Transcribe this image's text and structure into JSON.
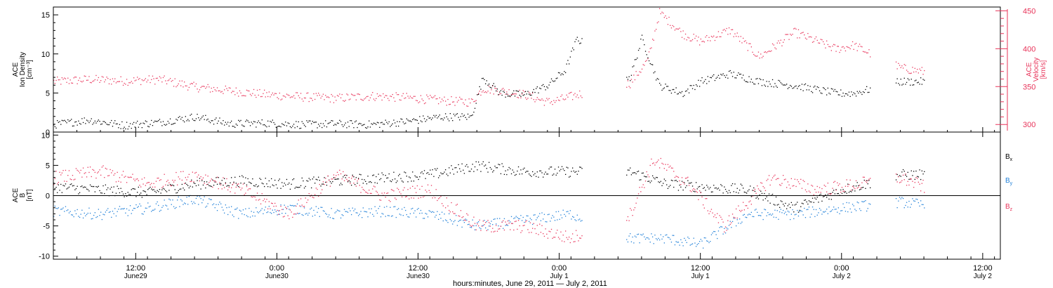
{
  "colors": {
    "black": "#000000",
    "red": "#e8345a",
    "blue": "#1e7fd8"
  },
  "time_axis": {
    "label": "hours:minutes, June 29, 2011 — July  2, 2011",
    "ticks": [
      {
        "time": "2011-06-29T12:00",
        "line1": "12:00",
        "line2": "June29"
      },
      {
        "time": "2011-06-30T00:00",
        "line1": "0:00",
        "line2": "June30"
      },
      {
        "time": "2011-06-30T12:00",
        "line1": "12:00",
        "line2": "June30"
      },
      {
        "time": "2011-07-01T00:00",
        "line1": "0:00",
        "line2": "July  1"
      },
      {
        "time": "2011-07-01T12:00",
        "line1": "12:00",
        "line2": "July  1"
      },
      {
        "time": "2011-07-02T00:00",
        "line1": "0:00",
        "line2": "July  2"
      },
      {
        "time": "2011-07-02T12:00",
        "line1": "12:00",
        "line2": "July  2"
      }
    ]
  },
  "chart_data": [
    {
      "type": "scatter",
      "panel": "top",
      "xlim": [
        "2011-06-29T05:00",
        "2011-07-02T13:30"
      ],
      "left_axis": {
        "label_lines": [
          "ACE",
          "Ion Density",
          "[cm⁻³]"
        ],
        "ylim": [
          0,
          16
        ],
        "tick_labels": [
          "0",
          "5",
          "10",
          "15"
        ]
      },
      "right_axis": {
        "label_lines": [
          "ACE",
          "Velocity",
          "[km/s]"
        ],
        "ylim": [
          290,
          455
        ],
        "tick_labels": [
          "300",
          "350",
          "400",
          "450"
        ]
      },
      "series": [
        {
          "axis": "left",
          "color": "#000000",
          "points": [
            [
              "2011-06-29T05:00",
              1.0
            ],
            [
              "2011-06-29T08:00",
              1.6
            ],
            [
              "2011-06-29T11:00",
              0.9
            ],
            [
              "2011-06-29T14:00",
              1.3
            ],
            [
              "2011-06-29T17:00",
              2.0
            ],
            [
              "2011-06-29T20:00",
              1.1
            ],
            [
              "2011-06-29T23:00",
              1.2
            ],
            [
              "2011-06-30T02:00",
              1.0
            ],
            [
              "2011-06-30T05:00",
              1.1
            ],
            [
              "2011-06-30T08:00",
              1.0
            ],
            [
              "2011-06-30T11:00",
              1.4
            ],
            [
              "2011-06-30T14:00",
              2.0
            ],
            [
              "2011-06-30T16:30",
              2.0
            ],
            [
              "2011-06-30T17:30",
              7.0
            ],
            [
              "2011-06-30T19:00",
              5.0
            ],
            [
              "2011-06-30T21:00",
              4.8
            ],
            [
              "2011-06-30T23:00",
              6.0
            ],
            [
              "2011-07-01T00:30",
              8.0
            ],
            [
              "2011-07-01T01:30",
              12.0
            ],
            [
              "2011-07-01T06:00",
              7.0
            ],
            [
              "2011-07-01T07:00",
              12.0
            ],
            [
              "2011-07-01T08:30",
              6.0
            ],
            [
              "2011-07-01T10:30",
              5.0
            ],
            [
              "2011-07-01T12:00",
              6.5
            ],
            [
              "2011-07-01T14:30",
              7.5
            ],
            [
              "2011-07-01T17:00",
              6.5
            ],
            [
              "2011-07-01T20:00",
              6.0
            ],
            [
              "2011-07-01T23:30",
              5.0
            ],
            [
              "2011-07-02T01:00",
              5.0
            ],
            [
              "2011-07-02T05:00",
              6.5
            ],
            [
              "2011-07-02T07:00",
              6.5
            ]
          ]
        },
        {
          "axis": "right",
          "color": "#e8345a",
          "points": [
            [
              "2011-06-29T05:00",
              357
            ],
            [
              "2011-06-29T08:00",
              360
            ],
            [
              "2011-06-29T11:00",
              358
            ],
            [
              "2011-06-29T14:00",
              360
            ],
            [
              "2011-06-29T17:00",
              350
            ],
            [
              "2011-06-29T20:00",
              345
            ],
            [
              "2011-06-29T23:00",
              340
            ],
            [
              "2011-06-30T02:00",
              337
            ],
            [
              "2011-06-30T05:00",
              335
            ],
            [
              "2011-06-30T08:00",
              338
            ],
            [
              "2011-06-30T11:00",
              336
            ],
            [
              "2011-06-30T14:00",
              332
            ],
            [
              "2011-06-30T16:30",
              330
            ],
            [
              "2011-06-30T17:30",
              348
            ],
            [
              "2011-06-30T19:00",
              345
            ],
            [
              "2011-06-30T21:00",
              340
            ],
            [
              "2011-06-30T23:00",
              330
            ],
            [
              "2011-07-01T00:30",
              335
            ],
            [
              "2011-07-01T01:30",
              340
            ],
            [
              "2011-07-01T06:00",
              355
            ],
            [
              "2011-07-01T07:30",
              385
            ],
            [
              "2011-07-01T08:30",
              448
            ],
            [
              "2011-07-01T10:30",
              420
            ],
            [
              "2011-07-01T12:00",
              410
            ],
            [
              "2011-07-01T14:30",
              425
            ],
            [
              "2011-07-01T17:00",
              390
            ],
            [
              "2011-07-01T20:00",
              422
            ],
            [
              "2011-07-01T23:30",
              400
            ],
            [
              "2011-07-02T01:00",
              405
            ],
            [
              "2011-07-02T05:00",
              375
            ],
            [
              "2011-07-02T07:00",
              370
            ]
          ]
        }
      ]
    },
    {
      "type": "scatter",
      "panel": "bottom",
      "xlim": [
        "2011-06-29T05:00",
        "2011-07-02T13:30"
      ],
      "axis": {
        "label_lines": [
          "ACE",
          "B",
          "[nT]"
        ],
        "ylim": [
          -10.5,
          10.5
        ],
        "tick_labels": [
          "-10",
          "-5",
          "0",
          "5",
          "10"
        ]
      },
      "legend_position": "right",
      "series": [
        {
          "name": "Bx",
          "color": "#000000",
          "points": [
            [
              "2011-06-29T05:00",
              1.5
            ],
            [
              "2011-06-29T09:00",
              1.0
            ],
            [
              "2011-06-29T13:00",
              0.5
            ],
            [
              "2011-06-29T17:00",
              2.0
            ],
            [
              "2011-06-29T21:00",
              2.5
            ],
            [
              "2011-06-30T01:00",
              2.0
            ],
            [
              "2011-06-30T05:00",
              2.5
            ],
            [
              "2011-06-30T09:00",
              3.0
            ],
            [
              "2011-06-30T13:00",
              3.5
            ],
            [
              "2011-06-30T17:00",
              5.0
            ],
            [
              "2011-06-30T21:00",
              4.0
            ],
            [
              "2011-07-01T01:00",
              4.0
            ],
            [
              "2011-07-01T06:00",
              4.0
            ],
            [
              "2011-07-01T09:00",
              2.0
            ],
            [
              "2011-07-01T12:00",
              1.5
            ],
            [
              "2011-07-01T16:00",
              1.0
            ],
            [
              "2011-07-01T20:00",
              -2.0
            ],
            [
              "2011-07-02T00:00",
              1.0
            ],
            [
              "2011-07-02T05:00",
              3.5
            ],
            [
              "2011-07-02T07:00",
              3.5
            ]
          ]
        },
        {
          "name": "By",
          "color": "#1e7fd8",
          "points": [
            [
              "2011-06-29T05:00",
              -2.5
            ],
            [
              "2011-06-29T09:00",
              -3.0
            ],
            [
              "2011-06-29T13:00",
              -2.0
            ],
            [
              "2011-06-29T17:00",
              -0.5
            ],
            [
              "2011-06-29T21:00",
              -3.0
            ],
            [
              "2011-06-30T01:00",
              -2.0
            ],
            [
              "2011-06-30T05:00",
              -3.0
            ],
            [
              "2011-06-30T09:00",
              -2.5
            ],
            [
              "2011-06-30T13:00",
              -3.0
            ],
            [
              "2011-06-30T17:00",
              -5.0
            ],
            [
              "2011-06-30T21:00",
              -4.0
            ],
            [
              "2011-07-01T01:00",
              -3.0
            ],
            [
              "2011-07-01T06:00",
              -7.0
            ],
            [
              "2011-07-01T09:00",
              -7.0
            ],
            [
              "2011-07-01T12:00",
              -8.0
            ],
            [
              "2011-07-01T16:00",
              -3.0
            ],
            [
              "2011-07-01T20:00",
              -3.0
            ],
            [
              "2011-07-02T00:00",
              -2.0
            ],
            [
              "2011-07-02T05:00",
              -1.0
            ],
            [
              "2011-07-02T07:00",
              -1.5
            ]
          ]
        },
        {
          "name": "Bz",
          "color": "#e8345a",
          "points": [
            [
              "2011-06-29T05:00",
              3.0
            ],
            [
              "2011-06-29T09:00",
              4.0
            ],
            [
              "2011-06-29T13:00",
              2.0
            ],
            [
              "2011-06-29T17:00",
              3.5
            ],
            [
              "2011-06-29T21:00",
              1.0
            ],
            [
              "2011-06-30T01:00",
              -3.0
            ],
            [
              "2011-06-30T05:00",
              3.5
            ],
            [
              "2011-06-30T09:00",
              0.0
            ],
            [
              "2011-06-30T13:00",
              1.0
            ],
            [
              "2011-06-30T17:00",
              -5.0
            ],
            [
              "2011-06-30T21:00",
              -5.0
            ],
            [
              "2011-07-01T01:00",
              -7.0
            ],
            [
              "2011-07-01T06:00",
              -3.0
            ],
            [
              "2011-07-01T08:00",
              6.0
            ],
            [
              "2011-07-01T11:00",
              2.0
            ],
            [
              "2011-07-01T14:00",
              -5.0
            ],
            [
              "2011-07-01T18:00",
              3.0
            ],
            [
              "2011-07-01T22:00",
              1.0
            ],
            [
              "2011-07-02T05:00",
              3.0
            ],
            [
              "2011-07-02T07:00",
              1.5
            ]
          ]
        }
      ]
    }
  ]
}
